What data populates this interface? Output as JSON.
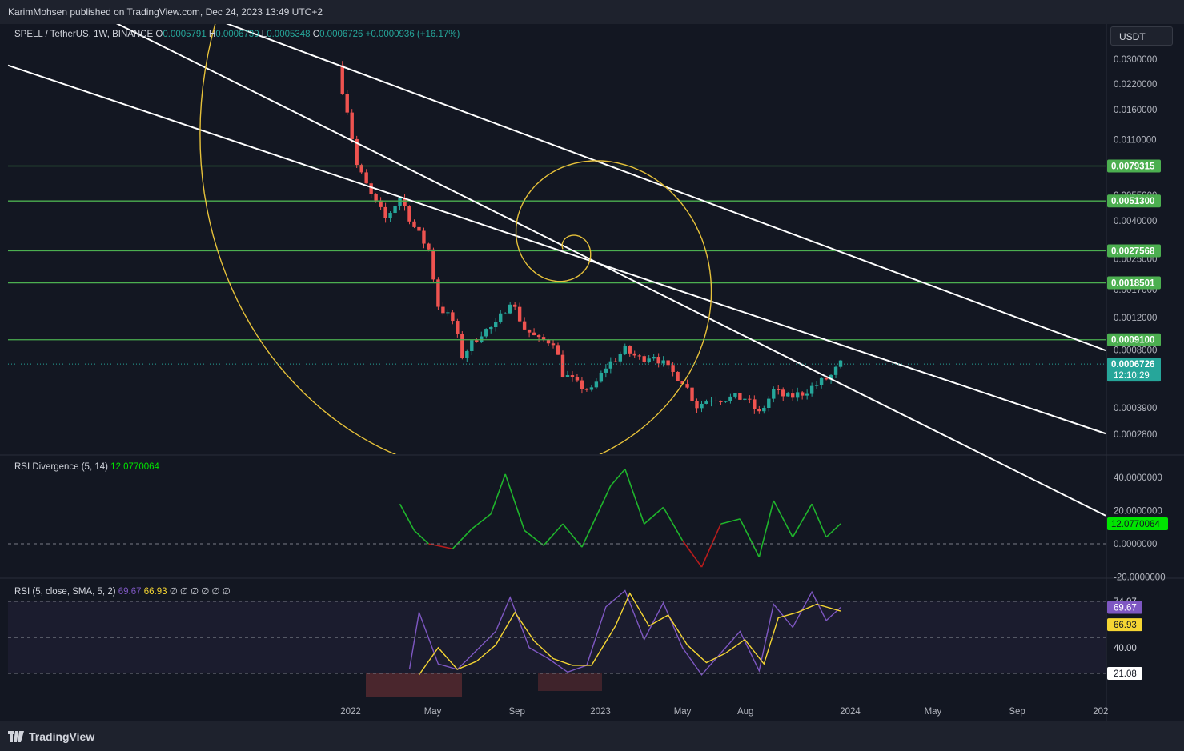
{
  "header": {
    "published": "KarimMohsen published on TradingView.com, Dec 24, 2023 13:49 UTC+2"
  },
  "footer": {
    "brand": "TradingView"
  },
  "currency_button": "USDT",
  "colors": {
    "background": "#131722",
    "up": "#26a69a",
    "down": "#ef5350",
    "fib_line": "#4caf50",
    "channel": "#ffffff",
    "spiral": "#e6c13a",
    "rsi_line": "#7e57c2",
    "rsi_sma": "#f5d533",
    "div_pos": "#1fb52c",
    "div_neg": "#b71c1c"
  },
  "legend": {
    "symbol": "SPELL / TetherUS, 1W, BINANCE",
    "open_label": "O",
    "open": "0.0005791",
    "high_label": "H",
    "high": "0.0006739",
    "low_label": "L",
    "low": "0.0005348",
    "close_label": "C",
    "close": "0.0006726",
    "change": "+0.0000936 (+16.17%)"
  },
  "price_axis": {
    "ticks": [
      "0.0300000",
      "0.0220000",
      "0.0160000",
      "0.0110000",
      "0.0055000",
      "0.0040000",
      "0.0025000",
      "0.0017000",
      "0.0012000",
      "0.0008000",
      "0.0003900",
      "0.0002800"
    ],
    "level_labels": [
      "0.0079315",
      "0.0051300",
      "0.0027568",
      "0.0018501",
      "0.0009100"
    ],
    "last_price": "0.0006726",
    "countdown": "12:10:29"
  },
  "time_axis": [
    "2022",
    "May",
    "Sep",
    "2023",
    "May",
    "Aug",
    "2024",
    "May",
    "Sep",
    "202"
  ],
  "rsi_divergence": {
    "title": "RSI Divergence (5, 14)",
    "value": "12.0770064",
    "ticks": [
      "40.0000000",
      "20.0000000",
      "0.0000000",
      "-20.0000000"
    ],
    "current_label": "12.0770064"
  },
  "rsi": {
    "title": "RSI (5, close, SMA, 5, 2)",
    "rsi_value": "69.67",
    "sma_value": "66.93",
    "extra_values": [
      "∅",
      "∅",
      "∅",
      "∅",
      "∅",
      "∅"
    ],
    "ticks": [
      "74.07",
      "40.00",
      "21.08"
    ],
    "labels": {
      "rsi": "69.67",
      "sma": "66.93"
    }
  },
  "chart_data": {
    "type": "candlestick",
    "symbol": "SPELL / TetherUS",
    "interval": "1W",
    "exchange": "BINANCE",
    "y_scale": "log",
    "ylim": [
      0.00025,
      0.034
    ],
    "x_range": [
      "2021-12",
      "2025-01"
    ],
    "levels": [
      0.0079315,
      0.00513,
      0.0027568,
      0.0018501,
      0.00091
    ],
    "close_path": [
      {
        "x": "2021-12-13",
        "y": 0.027
      },
      {
        "x": "2021-12-27",
        "y": 0.016
      },
      {
        "x": "2022-01-10",
        "y": 0.008
      },
      {
        "x": "2022-01-31",
        "y": 0.0055
      },
      {
        "x": "2022-02-21",
        "y": 0.0041
      },
      {
        "x": "2022-03-14",
        "y": 0.0054
      },
      {
        "x": "2022-04-04",
        "y": 0.0037
      },
      {
        "x": "2022-04-25",
        "y": 0.0028
      },
      {
        "x": "2022-05-09",
        "y": 0.0014
      },
      {
        "x": "2022-05-30",
        "y": 0.00115
      },
      {
        "x": "2022-06-13",
        "y": 0.00075
      },
      {
        "x": "2022-07-11",
        "y": 0.001
      },
      {
        "x": "2022-08-01",
        "y": 0.00108
      },
      {
        "x": "2022-08-22",
        "y": 0.0015
      },
      {
        "x": "2022-09-12",
        "y": 0.00105
      },
      {
        "x": "2022-10-03",
        "y": 0.0009
      },
      {
        "x": "2022-10-24",
        "y": 0.0009
      },
      {
        "x": "2022-11-07",
        "y": 0.0006
      },
      {
        "x": "2022-11-28",
        "y": 0.00052
      },
      {
        "x": "2022-12-19",
        "y": 0.00048
      },
      {
        "x": "2023-01-09",
        "y": 0.00065
      },
      {
        "x": "2023-02-06",
        "y": 0.0008
      },
      {
        "x": "2023-02-27",
        "y": 0.00072
      },
      {
        "x": "2023-03-20",
        "y": 0.00076
      },
      {
        "x": "2023-04-10",
        "y": 0.00063
      },
      {
        "x": "2023-05-01",
        "y": 0.00055
      },
      {
        "x": "2023-05-22",
        "y": 0.0004
      },
      {
        "x": "2023-06-12",
        "y": 0.00044
      },
      {
        "x": "2023-07-10",
        "y": 0.00044
      },
      {
        "x": "2023-07-31",
        "y": 0.00044
      },
      {
        "x": "2023-08-21",
        "y": 0.00036
      },
      {
        "x": "2023-09-11",
        "y": 0.00048
      },
      {
        "x": "2023-10-02",
        "y": 0.00044
      },
      {
        "x": "2023-10-23",
        "y": 0.00047
      },
      {
        "x": "2023-11-13",
        "y": 0.00052
      },
      {
        "x": "2023-12-04",
        "y": 0.00058
      },
      {
        "x": "2023-12-18",
        "y": 0.0006726
      }
    ],
    "rsi_divergence_series": [
      {
        "x": "2022-03-14",
        "y": 24
      },
      {
        "x": "2022-04-04",
        "y": 8
      },
      {
        "x": "2022-04-25",
        "y": 0
      },
      {
        "x": "2022-05-30",
        "y": -3
      },
      {
        "x": "2022-06-27",
        "y": 9
      },
      {
        "x": "2022-07-25",
        "y": 18
      },
      {
        "x": "2022-08-15",
        "y": 42
      },
      {
        "x": "2022-09-12",
        "y": 8
      },
      {
        "x": "2022-10-10",
        "y": -1
      },
      {
        "x": "2022-11-07",
        "y": 12
      },
      {
        "x": "2022-12-05",
        "y": -2
      },
      {
        "x": "2023-01-16",
        "y": 35
      },
      {
        "x": "2023-02-06",
        "y": 45
      },
      {
        "x": "2023-03-06",
        "y": 12
      },
      {
        "x": "2023-04-03",
        "y": 22
      },
      {
        "x": "2023-05-01",
        "y": 2
      },
      {
        "x": "2023-05-29",
        "y": -14
      },
      {
        "x": "2023-06-26",
        "y": 12
      },
      {
        "x": "2023-07-24",
        "y": 15
      },
      {
        "x": "2023-08-21",
        "y": -8
      },
      {
        "x": "2023-09-11",
        "y": 26
      },
      {
        "x": "2023-10-09",
        "y": 4
      },
      {
        "x": "2023-11-06",
        "y": 24
      },
      {
        "x": "2023-11-27",
        "y": 4
      },
      {
        "x": "2023-12-18",
        "y": 12.08
      }
    ],
    "rsi_series": [
      {
        "x": "2022-03-28",
        "y": 24
      },
      {
        "x": "2022-04-11",
        "y": 66
      },
      {
        "x": "2022-05-09",
        "y": 28
      },
      {
        "x": "2022-06-06",
        "y": 24
      },
      {
        "x": "2022-07-04",
        "y": 38
      },
      {
        "x": "2022-08-01",
        "y": 52
      },
      {
        "x": "2022-08-22",
        "y": 77
      },
      {
        "x": "2022-09-19",
        "y": 40
      },
      {
        "x": "2022-10-17",
        "y": 32
      },
      {
        "x": "2022-11-14",
        "y": 22
      },
      {
        "x": "2022-12-12",
        "y": 27
      },
      {
        "x": "2023-01-09",
        "y": 70
      },
      {
        "x": "2023-02-06",
        "y": 82
      },
      {
        "x": "2023-03-06",
        "y": 46
      },
      {
        "x": "2023-04-03",
        "y": 73
      },
      {
        "x": "2023-05-01",
        "y": 40
      },
      {
        "x": "2023-05-29",
        "y": 20
      },
      {
        "x": "2023-06-26",
        "y": 36
      },
      {
        "x": "2023-07-24",
        "y": 52
      },
      {
        "x": "2023-08-21",
        "y": 23
      },
      {
        "x": "2023-09-11",
        "y": 72
      },
      {
        "x": "2023-10-09",
        "y": 55
      },
      {
        "x": "2023-11-06",
        "y": 81
      },
      {
        "x": "2023-11-27",
        "y": 60
      },
      {
        "x": "2023-12-18",
        "y": 69.67
      }
    ],
    "rsi_sma_series": [
      {
        "x": "2022-04-11",
        "y": 20
      },
      {
        "x": "2022-05-09",
        "y": 40
      },
      {
        "x": "2022-06-06",
        "y": 24
      },
      {
        "x": "2022-07-04",
        "y": 30
      },
      {
        "x": "2022-08-01",
        "y": 42
      },
      {
        "x": "2022-08-29",
        "y": 66
      },
      {
        "x": "2022-09-26",
        "y": 45
      },
      {
        "x": "2022-10-24",
        "y": 32
      },
      {
        "x": "2022-11-21",
        "y": 27
      },
      {
        "x": "2022-12-19",
        "y": 27
      },
      {
        "x": "2023-01-23",
        "y": 56
      },
      {
        "x": "2023-02-13",
        "y": 80
      },
      {
        "x": "2023-03-13",
        "y": 56
      },
      {
        "x": "2023-04-10",
        "y": 64
      },
      {
        "x": "2023-05-08",
        "y": 42
      },
      {
        "x": "2023-06-05",
        "y": 29
      },
      {
        "x": "2023-07-03",
        "y": 36
      },
      {
        "x": "2023-07-31",
        "y": 46
      },
      {
        "x": "2023-08-28",
        "y": 28
      },
      {
        "x": "2023-09-18",
        "y": 62
      },
      {
        "x": "2023-10-16",
        "y": 66
      },
      {
        "x": "2023-11-13",
        "y": 72
      },
      {
        "x": "2023-12-18",
        "y": 66.93
      }
    ]
  }
}
